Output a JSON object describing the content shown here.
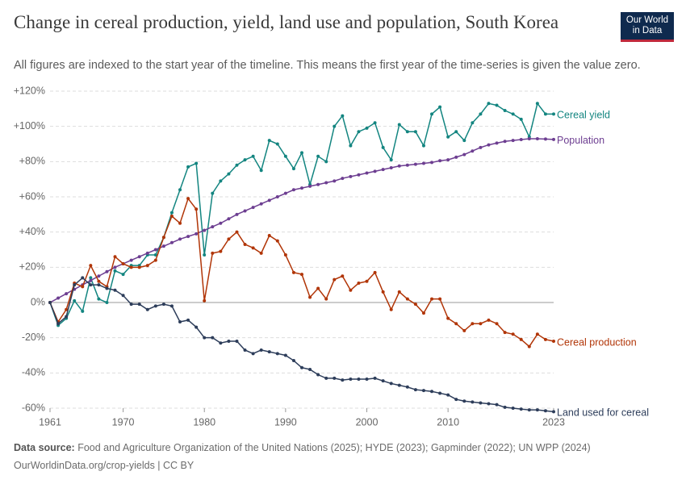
{
  "chart_data": {
    "type": "line",
    "title": "Change in cereal production, yield, land use and population, South Korea",
    "subtitle": "All figures are indexed to the start year of the timeline. This means the first year of the time-series is given the value zero.",
    "logo": [
      "Our World",
      "in Data"
    ],
    "source_label": "Data source:",
    "source": "Food and Agriculture Organization of the United Nations (2025); HYDE (2023); Gapminder (2022); UN WPP (2024)",
    "footer": "OurWorldinData.org/crop-yields | CC BY",
    "x": [
      1961,
      1962,
      1963,
      1964,
      1965,
      1966,
      1967,
      1968,
      1969,
      1970,
      1971,
      1972,
      1973,
      1974,
      1975,
      1976,
      1977,
      1978,
      1979,
      1980,
      1981,
      1982,
      1983,
      1984,
      1985,
      1986,
      1987,
      1988,
      1989,
      1990,
      1991,
      1992,
      1993,
      1994,
      1995,
      1996,
      1997,
      1998,
      1999,
      2000,
      2001,
      2002,
      2003,
      2004,
      2005,
      2006,
      2007,
      2008,
      2009,
      2010,
      2011,
      2012,
      2013,
      2014,
      2015,
      2016,
      2017,
      2018,
      2019,
      2020,
      2021,
      2022,
      2023
    ],
    "xlim": [
      1961,
      2023
    ],
    "xticks": [
      1961,
      1970,
      1980,
      1990,
      2000,
      2010,
      2023
    ],
    "ylim": [
      -60,
      120
    ],
    "yticks": [
      {
        "value": -60,
        "label": "-60%"
      },
      {
        "value": -40,
        "label": "-40%"
      },
      {
        "value": -20,
        "label": "-20%"
      },
      {
        "value": 0,
        "label": "0%"
      },
      {
        "value": 20,
        "label": "+20%"
      },
      {
        "value": 40,
        "label": "+40%"
      },
      {
        "value": 60,
        "label": "+60%"
      },
      {
        "value": 80,
        "label": "+80%"
      },
      {
        "value": 100,
        "label": "+100%"
      },
      {
        "value": 120,
        "label": "+120%"
      }
    ],
    "grid": true,
    "series": [
      {
        "name": "Cereal yield",
        "color": "#138580",
        "values": [
          0,
          -13,
          -9,
          1,
          -5,
          14,
          2,
          0,
          18,
          16,
          21,
          21,
          27,
          27,
          37,
          51,
          64,
          77,
          79,
          27,
          62,
          69,
          73,
          78,
          81,
          83,
          75,
          92,
          90,
          83,
          76,
          85,
          67,
          83,
          80,
          100,
          106,
          89,
          97,
          99,
          102,
          88,
          81,
          101,
          97,
          97,
          89,
          107,
          111,
          94,
          97,
          92,
          102,
          107,
          113,
          112,
          109,
          107,
          104,
          94,
          113,
          107,
          107
        ]
      },
      {
        "name": "Population",
        "color": "#6d3e91",
        "values": [
          0,
          2.5,
          5,
          7.5,
          10,
          12.5,
          15,
          17.5,
          20,
          22,
          24,
          26,
          28,
          30,
          32,
          34,
          36,
          37.5,
          39,
          41,
          43,
          45,
          47.5,
          50,
          52,
          54,
          56,
          58,
          60,
          62,
          64,
          65,
          66,
          67,
          68,
          69,
          70.5,
          71.5,
          72.5,
          73.5,
          74.5,
          75.5,
          76.5,
          77.5,
          78,
          78.5,
          79,
          79.5,
          80.5,
          81,
          82.5,
          84,
          86,
          88,
          89.5,
          90.5,
          91.5,
          92,
          92.5,
          93,
          93,
          92.8,
          92.6
        ]
      },
      {
        "name": "Cereal production",
        "color": "#b13507",
        "values": [
          0,
          -11,
          -4,
          11,
          9,
          21,
          12,
          9,
          26,
          22,
          20,
          20,
          21,
          24,
          37,
          49,
          45,
          59,
          53,
          1,
          28,
          29,
          36,
          40,
          33,
          31,
          28,
          38,
          35,
          27,
          17,
          16,
          3,
          8,
          2,
          13,
          15,
          7,
          11,
          12,
          17,
          6,
          -4,
          6,
          2,
          -1,
          -6,
          2,
          2,
          -9,
          -12,
          -16,
          -12,
          -12,
          -10,
          -12,
          -17,
          -18,
          -21,
          -25,
          -18,
          -21,
          -22
        ]
      },
      {
        "name": "Land used for cereal",
        "color": "#2d3d5a",
        "values": [
          0,
          -12,
          -8,
          10,
          14,
          10,
          10,
          8,
          7,
          4,
          -1,
          -1,
          -4,
          -2,
          -1,
          -2,
          -11,
          -10,
          -14,
          -20,
          -20,
          -23,
          -22,
          -22,
          -27,
          -29,
          -27,
          -28,
          -29,
          -30,
          -33,
          -37,
          -38,
          -41,
          -43,
          -43,
          -44,
          -43.5,
          -43.5,
          -43.5,
          -43,
          -44.5,
          -46,
          -47,
          -48,
          -49.5,
          -50,
          -50.5,
          -51.5,
          -52.5,
          -55,
          -56,
          -56.5,
          -57,
          -57.5,
          -58,
          -59.5,
          -60,
          -60.5,
          -61,
          -61,
          -61.5,
          -62
        ]
      }
    ]
  }
}
